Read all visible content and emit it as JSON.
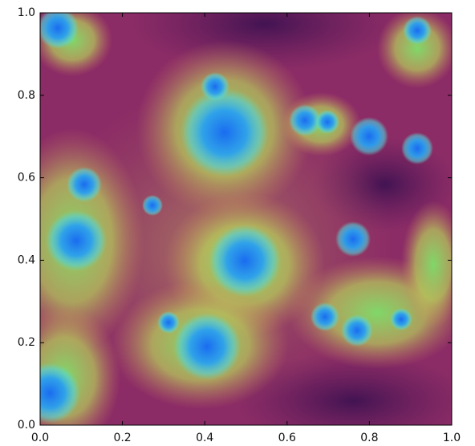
{
  "chart_data": {
    "type": "image",
    "xlim": [
      0,
      1
    ],
    "ylim": [
      0,
      1
    ],
    "xticks": [
      {
        "value": 0,
        "label": "0.0"
      },
      0.2,
      0.4,
      0.6,
      0.8,
      {
        "value": 1,
        "label": "1.0"
      }
    ],
    "yticks": [
      {
        "value": 0,
        "label": "0.0"
      },
      0.2,
      0.4,
      0.6,
      0.8,
      {
        "value": 1,
        "label": "1.0"
      }
    ]
  }
}
